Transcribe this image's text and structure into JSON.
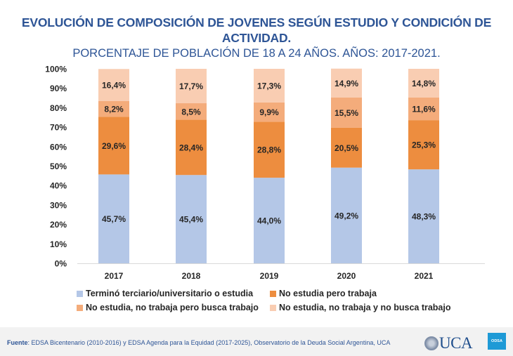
{
  "chart_data": {
    "type": "bar",
    "stacked": true,
    "title": "EVOLUCIÓN DE COMPOSICIÓN DE JOVENES SEGÚN ESTUDIO Y CONDICIÓN DE ACTIVIDAD.",
    "title_line1": "EVOLUCIÓN DE COMPOSICIÓN DE JOVENES SEGÚN ESTUDIO Y CONDICIÓN DE",
    "title_line2": "ACTIVIDAD.",
    "subtitle": "PORCENTAJE DE POBLACIÓN DE 18 A 24 AÑOS. AÑOS: 2017-2021.",
    "xlabel": "",
    "ylabel": "",
    "ylim": [
      0,
      100
    ],
    "yticks": [
      "0%",
      "10%",
      "20%",
      "30%",
      "40%",
      "50%",
      "60%",
      "70%",
      "80%",
      "90%",
      "100%"
    ],
    "grid": false,
    "legend_position": "bottom",
    "categories": [
      "2017",
      "2018",
      "2019",
      "2020",
      "2021"
    ],
    "series": [
      {
        "name": "Terminó terciario/universitario o estudia",
        "color": "#b4c7e7",
        "values": [
          45.7,
          45.4,
          44.0,
          49.2,
          48.3
        ],
        "labels": [
          "45,7%",
          "45,4%",
          "44,0%",
          "49,2%",
          "48,3%"
        ]
      },
      {
        "name": "No estudia pero trabaja",
        "color": "#ed8d3f",
        "values": [
          29.6,
          28.4,
          28.8,
          20.5,
          25.3
        ],
        "labels": [
          "29,6%",
          "28,4%",
          "28,8%",
          "20,5%",
          "25,3%"
        ]
      },
      {
        "name": "No estudia, no trabaja pero busca trabajo",
        "color": "#f4ac7b",
        "values": [
          8.2,
          8.5,
          9.9,
          15.5,
          11.6
        ],
        "labels": [
          "8,2%",
          "8,5%",
          "9,9%",
          "15,5%",
          "11,6%"
        ]
      },
      {
        "name": "No estudia, no trabaja y no busca trabajo",
        "color": "#f9cdb2",
        "values": [
          16.4,
          17.7,
          17.3,
          14.9,
          14.8
        ],
        "labels": [
          "16,4%",
          "17,7%",
          "17,3%",
          "14,9%",
          "14,8%"
        ]
      }
    ]
  },
  "footer": {
    "source_label": "Fuente",
    "source_text": ": EDSA Bicentenario (2010-2016) y EDSA Agenda para la Equidad (2017-2025), Observatorio de la Deuda Social Argentina, UCA",
    "logo_text": "UCA",
    "badge_text": "ODSA"
  }
}
